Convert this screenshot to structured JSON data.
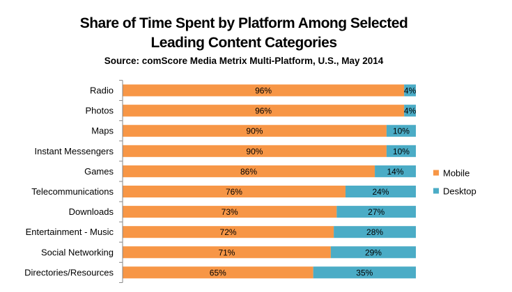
{
  "chart_data": {
    "type": "bar",
    "orientation": "horizontal",
    "stacked": true,
    "title_lines": [
      "Share of Time Spent by Platform Among Selected",
      "Leading Content Categories"
    ],
    "subtitle": "Source: comScore Media Metrix Multi-Platform, U.S., May 2014",
    "categories": [
      "Radio",
      "Photos",
      "Maps",
      "Instant Messengers",
      "Games",
      "Telecommunications",
      "Downloads",
      "Entertainment - Music",
      "Social Networking",
      "Directories/Resources"
    ],
    "series": [
      {
        "name": "Mobile",
        "color": "#F79646",
        "values": [
          96,
          96,
          90,
          90,
          86,
          76,
          73,
          72,
          71,
          65
        ],
        "labels": [
          "96%",
          "96%",
          "90%",
          "90%",
          "86%",
          "76%",
          "73%",
          "72%",
          "71%",
          "65%"
        ]
      },
      {
        "name": "Desktop",
        "color": "#4BACC6",
        "values": [
          4,
          4,
          10,
          10,
          14,
          24,
          27,
          28,
          29,
          35
        ],
        "labels": [
          "4%",
          "4%",
          "10%",
          "10%",
          "14%",
          "24%",
          "27%",
          "28%",
          "29%",
          "35%"
        ]
      }
    ],
    "xlim": [
      0,
      100
    ],
    "legend_position": "right"
  }
}
